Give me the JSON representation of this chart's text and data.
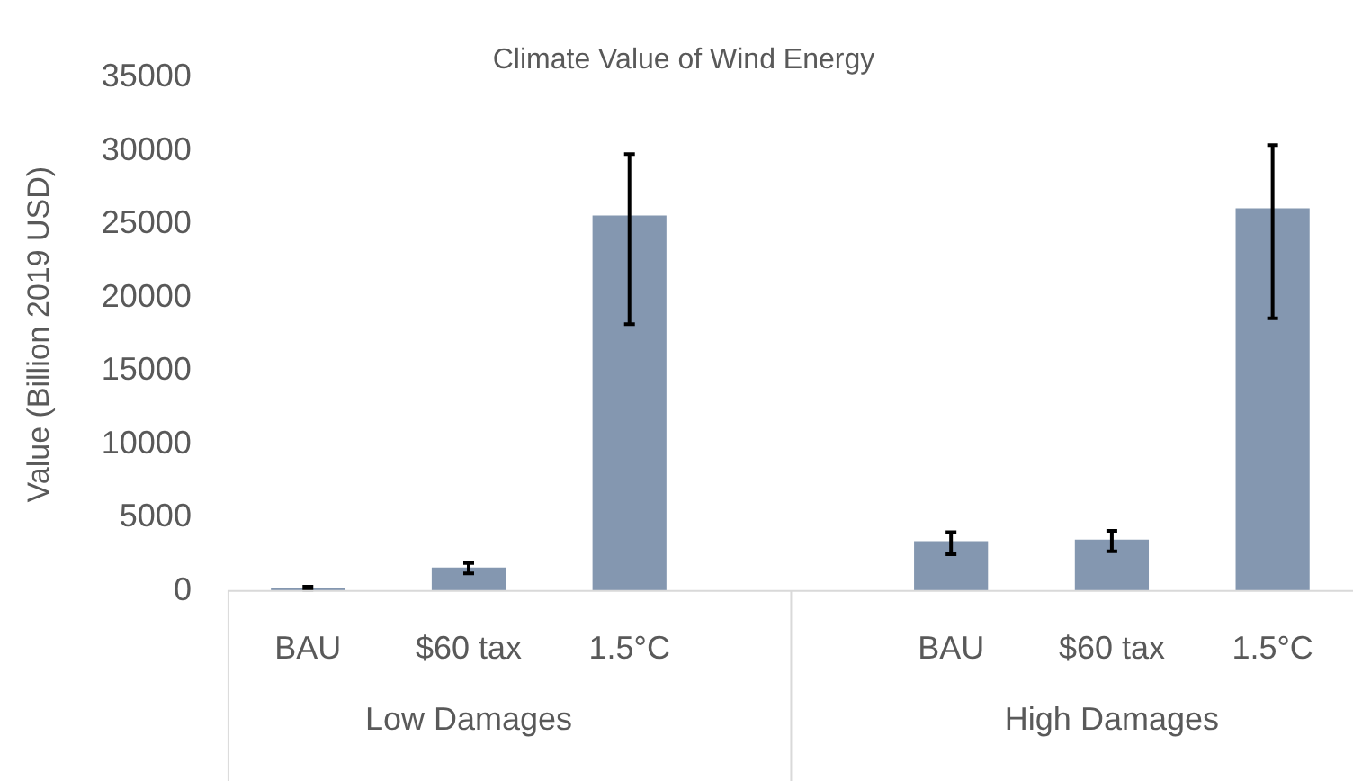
{
  "chart_data": {
    "type": "bar",
    "title": "Climate Value of Wind Energy",
    "ylabel": "Value (Billion 2019 USD)",
    "categories": [
      "BAU",
      "$60 tax",
      "1.5°C",
      null,
      "BAU",
      "$60 tax",
      "1.5°C"
    ],
    "values": [
      200,
      1600,
      25600,
      null,
      3400,
      3500,
      26100
    ],
    "errors": [
      [
        100,
        300
      ],
      [
        1200,
        1900
      ],
      [
        18200,
        29800
      ],
      null,
      [
        2500,
        4000
      ],
      [
        2700,
        4100
      ],
      [
        18600,
        30400
      ]
    ],
    "color": "#8497b0",
    "ylim": [
      0,
      35000
    ],
    "yticks": [
      0,
      5000,
      10000,
      15000,
      20000,
      25000,
      30000,
      35000
    ],
    "grid": false,
    "legend": false,
    "annotations": [
      "Low Damages",
      "High Damages"
    ]
  }
}
